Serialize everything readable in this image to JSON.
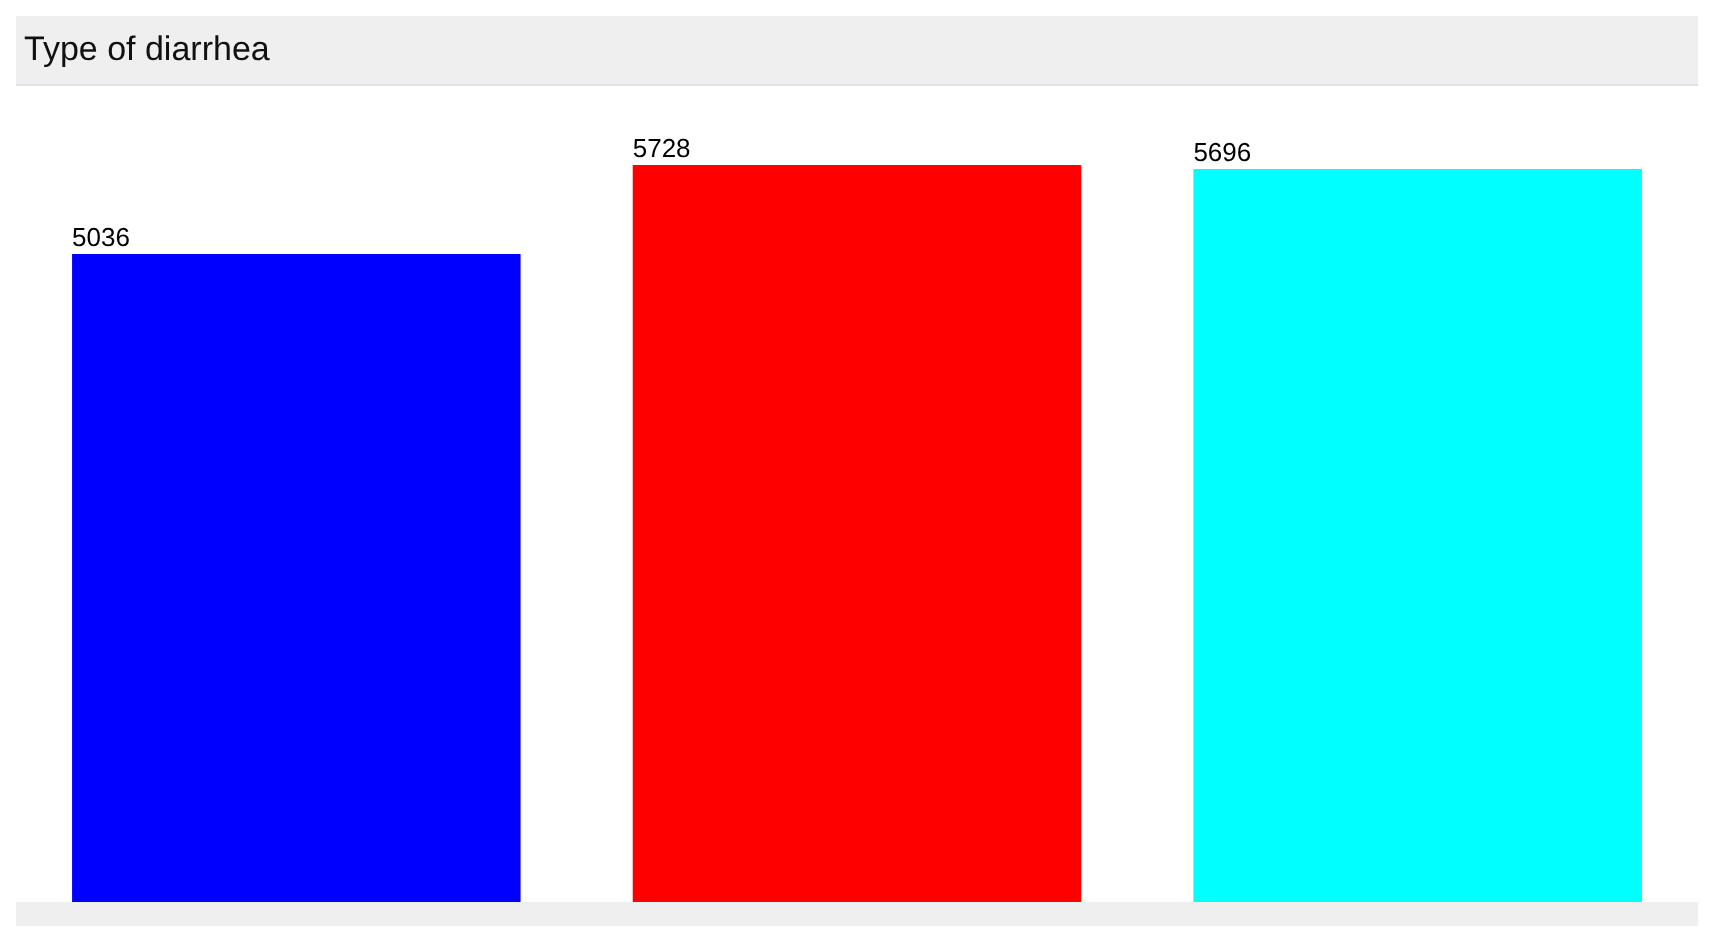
{
  "chart_data": {
    "type": "bar",
    "title": "Type of diarrhea",
    "categories": [
      null,
      null,
      null
    ],
    "values": [
      5036,
      5728,
      5696
    ],
    "colors": [
      "#0000ff",
      "#ff0000",
      "#00ffff"
    ],
    "data_labels": true
  }
}
